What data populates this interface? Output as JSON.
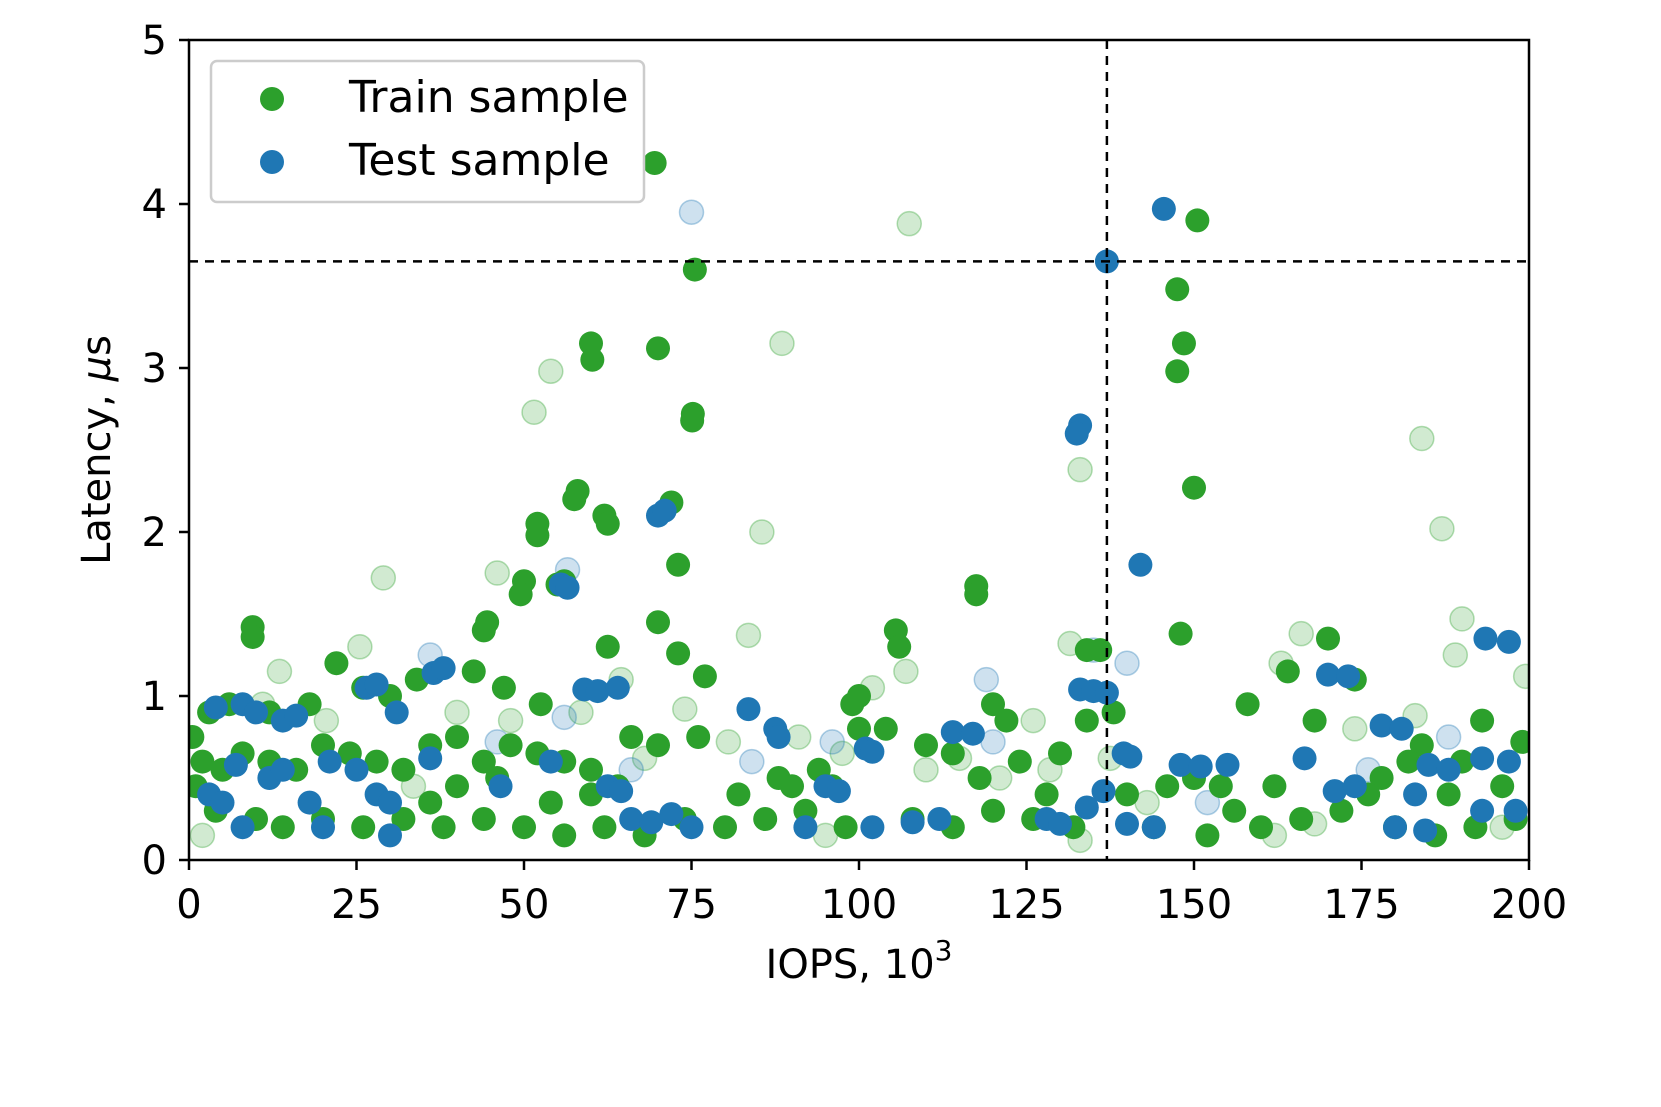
{
  "chart_data": {
    "type": "scatter",
    "xlabel_text": "IOPS, 10",
    "xlabel_sup": "3",
    "ylabel_text": "Latency, ",
    "ylabel_mu": "μ",
    "ylabel_unit": "s",
    "xlim": [
      0,
      200
    ],
    "ylim": [
      0,
      5
    ],
    "xticks": [
      0,
      25,
      50,
      75,
      100,
      125,
      150,
      175,
      200
    ],
    "yticks": [
      0,
      1,
      2,
      3,
      4,
      5
    ],
    "xtick_labels": [
      "0",
      "25",
      "50",
      "75",
      "100",
      "125",
      "150",
      "175",
      "200"
    ],
    "ytick_labels": [
      "0",
      "1",
      "2",
      "3",
      "4",
      "5"
    ],
    "legend_position": "top-left",
    "reference_lines": {
      "x": 137,
      "y": 3.65
    },
    "series": [
      {
        "name": "Train sample",
        "color": "#2ca02c",
        "points_solid": [
          [
            69.5,
            4.25
          ],
          [
            75.5,
            3.6
          ],
          [
            70.0,
            3.12
          ],
          [
            60.0,
            3.15
          ],
          [
            60.2,
            3.05
          ],
          [
            75.2,
            2.72
          ],
          [
            75.1,
            2.68
          ],
          [
            72.0,
            2.18
          ],
          [
            73.0,
            1.8
          ],
          [
            70.0,
            1.45
          ],
          [
            73.0,
            1.26
          ],
          [
            77.0,
            1.12
          ],
          [
            58.0,
            2.25
          ],
          [
            57.5,
            2.2
          ],
          [
            62.0,
            2.1
          ],
          [
            62.5,
            2.05
          ],
          [
            52.0,
            2.05
          ],
          [
            52.0,
            1.98
          ],
          [
            50.0,
            1.7
          ],
          [
            49.5,
            1.62
          ],
          [
            55.0,
            1.68
          ],
          [
            56.0,
            1.7
          ],
          [
            44.5,
            1.45
          ],
          [
            44.0,
            1.4
          ],
          [
            9.5,
            1.42
          ],
          [
            9.5,
            1.36
          ],
          [
            150.5,
            3.9
          ],
          [
            147.5,
            3.48
          ],
          [
            148.5,
            3.15
          ],
          [
            147.5,
            2.98
          ],
          [
            150.0,
            2.27
          ],
          [
            148.0,
            1.38
          ],
          [
            117.5,
            1.67
          ],
          [
            117.5,
            1.62
          ],
          [
            105.5,
            1.4
          ],
          [
            106.0,
            1.3
          ],
          [
            100.0,
            1.0
          ],
          [
            99.0,
            0.95
          ],
          [
            62.5,
            1.3
          ],
          [
            47.0,
            1.05
          ],
          [
            52.5,
            0.95
          ],
          [
            42.5,
            1.15
          ],
          [
            3.0,
            0.9
          ],
          [
            6.0,
            0.95
          ],
          [
            12.0,
            0.9
          ],
          [
            18.0,
            0.95
          ],
          [
            22.0,
            1.2
          ],
          [
            26.0,
            1.05
          ],
          [
            30.0,
            1.0
          ],
          [
            34.0,
            1.1
          ],
          [
            2.0,
            0.6
          ],
          [
            5.0,
            0.55
          ],
          [
            8.0,
            0.65
          ],
          [
            12.0,
            0.6
          ],
          [
            16.0,
            0.55
          ],
          [
            20.0,
            0.7
          ],
          [
            24.0,
            0.65
          ],
          [
            28.0,
            0.6
          ],
          [
            32.0,
            0.55
          ],
          [
            36.0,
            0.7
          ],
          [
            40.0,
            0.75
          ],
          [
            44.0,
            0.6
          ],
          [
            48.0,
            0.7
          ],
          [
            52.0,
            0.65
          ],
          [
            56.0,
            0.6
          ],
          [
            60.0,
            0.55
          ],
          [
            66.0,
            0.75
          ],
          [
            70.0,
            0.7
          ],
          [
            76.0,
            0.75
          ],
          [
            82.0,
            0.4
          ],
          [
            88.0,
            0.5
          ],
          [
            94.0,
            0.55
          ],
          [
            100.0,
            0.8
          ],
          [
            104.0,
            0.8
          ],
          [
            110.0,
            0.7
          ],
          [
            114.0,
            0.65
          ],
          [
            118.0,
            0.5
          ],
          [
            120.0,
            0.95
          ],
          [
            124.0,
            0.6
          ],
          [
            130.0,
            0.65
          ],
          [
            134.0,
            1.28
          ],
          [
            136.0,
            1.28
          ],
          [
            134.0,
            0.85
          ],
          [
            138.0,
            0.9
          ],
          [
            140.0,
            0.4
          ],
          [
            146.0,
            0.45
          ],
          [
            150.0,
            0.5
          ],
          [
            154.0,
            0.45
          ],
          [
            158.0,
            0.95
          ],
          [
            164.0,
            1.15
          ],
          [
            168.0,
            0.85
          ],
          [
            170.0,
            1.35
          ],
          [
            174.0,
            1.1
          ],
          [
            178.0,
            0.5
          ],
          [
            184.0,
            0.7
          ],
          [
            190.0,
            0.6
          ],
          [
            193.0,
            0.85
          ],
          [
            199.0,
            0.72
          ],
          [
            4.0,
            0.3
          ],
          [
            10.0,
            0.25
          ],
          [
            14.0,
            0.2
          ],
          [
            20.0,
            0.25
          ],
          [
            26.0,
            0.2
          ],
          [
            32.0,
            0.25
          ],
          [
            38.0,
            0.2
          ],
          [
            44.0,
            0.25
          ],
          [
            50.0,
            0.2
          ],
          [
            56.0,
            0.15
          ],
          [
            62.0,
            0.2
          ],
          [
            68.0,
            0.15
          ],
          [
            74.0,
            0.25
          ],
          [
            80.0,
            0.2
          ],
          [
            86.0,
            0.25
          ],
          [
            92.0,
            0.3
          ],
          [
            98.0,
            0.2
          ],
          [
            108.0,
            0.25
          ],
          [
            114.0,
            0.2
          ],
          [
            120.0,
            0.3
          ],
          [
            126.0,
            0.25
          ],
          [
            132.0,
            0.2
          ],
          [
            144.0,
            0.2
          ],
          [
            152.0,
            0.15
          ],
          [
            160.0,
            0.2
          ],
          [
            166.0,
            0.25
          ],
          [
            172.0,
            0.3
          ],
          [
            180.0,
            0.2
          ],
          [
            186.0,
            0.15
          ],
          [
            192.0,
            0.2
          ],
          [
            198.0,
            0.25
          ],
          [
            60.0,
            0.4
          ],
          [
            64.0,
            0.45
          ],
          [
            40.0,
            0.45
          ],
          [
            36.0,
            0.35
          ],
          [
            90.0,
            0.45
          ],
          [
            96.0,
            0.45
          ],
          [
            122.0,
            0.85
          ],
          [
            128.0,
            0.4
          ],
          [
            156.0,
            0.3
          ],
          [
            162.0,
            0.45
          ],
          [
            176.0,
            0.4
          ],
          [
            182.0,
            0.6
          ],
          [
            188.0,
            0.4
          ],
          [
            196.0,
            0.45
          ],
          [
            1.0,
            0.45
          ],
          [
            0.5,
            0.75
          ],
          [
            46.0,
            0.5
          ],
          [
            54.0,
            0.35
          ]
        ],
        "points_faint": [
          [
            107.5,
            3.88
          ],
          [
            88.5,
            3.15
          ],
          [
            54.0,
            2.98
          ],
          [
            51.5,
            2.73
          ],
          [
            85.5,
            2.0
          ],
          [
            29.0,
            1.72
          ],
          [
            46.0,
            1.75
          ],
          [
            133.0,
            2.38
          ],
          [
            184.0,
            2.57
          ],
          [
            187.0,
            2.02
          ],
          [
            190.0,
            1.47
          ],
          [
            189.0,
            1.25
          ],
          [
            199.5,
            1.12
          ],
          [
            131.5,
            1.32
          ],
          [
            83.5,
            1.37
          ],
          [
            25.5,
            1.3
          ],
          [
            13.5,
            1.15
          ],
          [
            102.0,
            1.05
          ],
          [
            107.0,
            1.15
          ],
          [
            121.0,
            0.5
          ],
          [
            126.0,
            0.85
          ],
          [
            166.0,
            1.38
          ],
          [
            163.0,
            1.2
          ],
          [
            68.0,
            0.62
          ],
          [
            80.5,
            0.72
          ],
          [
            91.0,
            0.75
          ],
          [
            97.5,
            0.65
          ],
          [
            128.5,
            0.55
          ],
          [
            183.0,
            0.88
          ],
          [
            174.0,
            0.8
          ],
          [
            33.5,
            0.45
          ],
          [
            58.5,
            0.9
          ],
          [
            64.5,
            1.1
          ],
          [
            74.0,
            0.92
          ],
          [
            110.0,
            0.55
          ],
          [
            115.0,
            0.62
          ],
          [
            137.5,
            0.62
          ],
          [
            143.0,
            0.35
          ],
          [
            162.0,
            0.15
          ],
          [
            40.0,
            0.9
          ],
          [
            48.0,
            0.85
          ],
          [
            20.5,
            0.85
          ],
          [
            11.0,
            0.95
          ],
          [
            2.0,
            0.15
          ],
          [
            95.0,
            0.15
          ],
          [
            133.0,
            0.12
          ],
          [
            168.0,
            0.22
          ],
          [
            196.0,
            0.2
          ]
        ]
      },
      {
        "name": "Test sample",
        "color": "#1f77b4",
        "points_solid": [
          [
            137.0,
            3.65
          ],
          [
            145.5,
            3.97
          ],
          [
            133.0,
            2.65
          ],
          [
            132.5,
            2.6
          ],
          [
            142.0,
            1.8
          ],
          [
            70.0,
            2.1
          ],
          [
            71.0,
            2.13
          ],
          [
            55.5,
            1.68
          ],
          [
            56.5,
            1.66
          ],
          [
            59.0,
            1.04
          ],
          [
            61.0,
            1.03
          ],
          [
            64.0,
            1.05
          ],
          [
            26.5,
            1.05
          ],
          [
            28.0,
            1.07
          ],
          [
            36.5,
            1.14
          ],
          [
            38.0,
            1.17
          ],
          [
            31.0,
            0.9
          ],
          [
            4.0,
            0.93
          ],
          [
            8.0,
            0.95
          ],
          [
            10.0,
            0.9
          ],
          [
            14.0,
            0.85
          ],
          [
            16.0,
            0.88
          ],
          [
            83.5,
            0.92
          ],
          [
            87.5,
            0.8
          ],
          [
            88.0,
            0.75
          ],
          [
            133.0,
            1.04
          ],
          [
            135.0,
            1.03
          ],
          [
            137.0,
            1.02
          ],
          [
            139.5,
            0.65
          ],
          [
            140.5,
            0.63
          ],
          [
            114.0,
            0.78
          ],
          [
            117.0,
            0.77
          ],
          [
            101.0,
            0.68
          ],
          [
            102.0,
            0.66
          ],
          [
            3.0,
            0.4
          ],
          [
            5.0,
            0.35
          ],
          [
            7.0,
            0.58
          ],
          [
            12.0,
            0.5
          ],
          [
            14.0,
            0.55
          ],
          [
            18.0,
            0.35
          ],
          [
            21.0,
            0.6
          ],
          [
            25.0,
            0.55
          ],
          [
            28.0,
            0.4
          ],
          [
            30.0,
            0.35
          ],
          [
            36.0,
            0.62
          ],
          [
            46.5,
            0.45
          ],
          [
            54.0,
            0.6
          ],
          [
            62.5,
            0.45
          ],
          [
            64.5,
            0.42
          ],
          [
            66.0,
            0.25
          ],
          [
            69.0,
            0.23
          ],
          [
            72.0,
            0.28
          ],
          [
            75.0,
            0.2
          ],
          [
            8.0,
            0.2
          ],
          [
            20.0,
            0.2
          ],
          [
            30.0,
            0.15
          ],
          [
            95.0,
            0.45
          ],
          [
            97.0,
            0.42
          ],
          [
            92.0,
            0.2
          ],
          [
            102.0,
            0.2
          ],
          [
            108.0,
            0.23
          ],
          [
            112.0,
            0.25
          ],
          [
            128.0,
            0.25
          ],
          [
            130.0,
            0.22
          ],
          [
            134.0,
            0.32
          ],
          [
            136.5,
            0.42
          ],
          [
            140.0,
            0.22
          ],
          [
            144.0,
            0.2
          ],
          [
            148.0,
            0.58
          ],
          [
            151.0,
            0.57
          ],
          [
            155.0,
            0.58
          ],
          [
            166.5,
            0.62
          ],
          [
            170.0,
            1.13
          ],
          [
            173.0,
            1.12
          ],
          [
            171.0,
            0.42
          ],
          [
            174.0,
            0.45
          ],
          [
            178.0,
            0.82
          ],
          [
            181.0,
            0.8
          ],
          [
            180.0,
            0.2
          ],
          [
            185.0,
            0.58
          ],
          [
            188.0,
            0.55
          ],
          [
            193.5,
            1.35
          ],
          [
            197.0,
            1.33
          ],
          [
            193.0,
            0.62
          ],
          [
            197.0,
            0.6
          ],
          [
            193.0,
            0.3
          ],
          [
            198.0,
            0.3
          ],
          [
            183.0,
            0.4
          ],
          [
            184.5,
            0.18
          ]
        ],
        "points_faint": [
          [
            75.0,
            3.95
          ],
          [
            56.5,
            1.77
          ],
          [
            36.0,
            1.25
          ],
          [
            119.0,
            1.1
          ],
          [
            140.0,
            1.2
          ],
          [
            135.0,
            1.28
          ],
          [
            56.0,
            0.87
          ],
          [
            84.0,
            0.6
          ],
          [
            96.0,
            0.72
          ],
          [
            120.0,
            0.72
          ],
          [
            176.0,
            0.55
          ],
          [
            152.0,
            0.35
          ],
          [
            66.0,
            0.55
          ],
          [
            46.0,
            0.72
          ],
          [
            188.0,
            0.75
          ]
        ]
      }
    ]
  }
}
